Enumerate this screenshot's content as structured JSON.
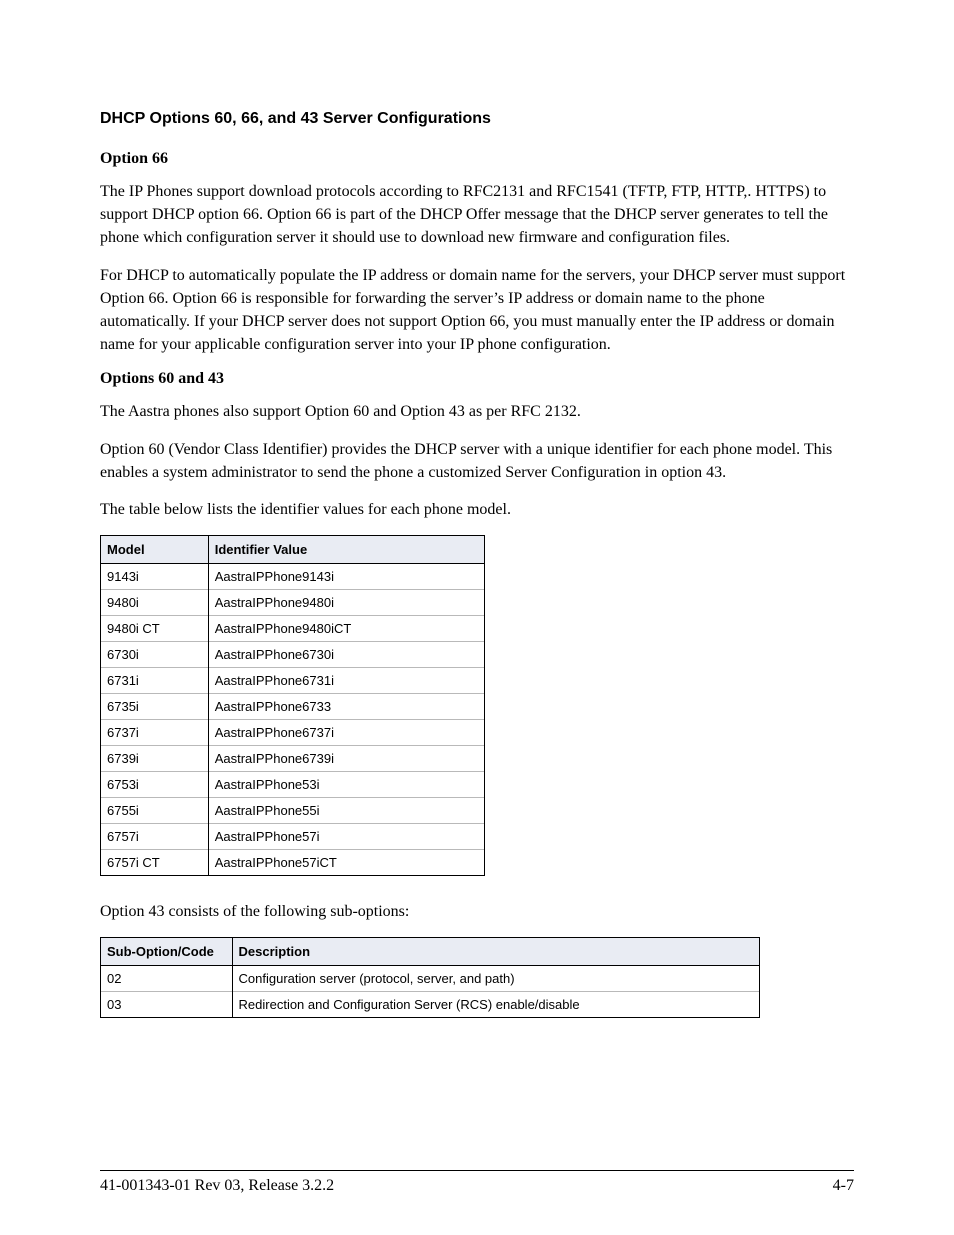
{
  "heading": "DHCP Options 60, 66, and 43 Server Configurations",
  "sub1": "Option 66",
  "p1": "The IP Phones support download protocols according to RFC2131 and RFC1541 (TFTP, FTP, HTTP,. HTTPS) to support DHCP option 66. Option 66 is part of the DHCP Offer message that the DHCP server generates to tell the phone which configuration server it should use to download new firmware and configuration files.",
  "p2": "For DHCP to automatically populate the IP address or domain name for the servers, your DHCP server must support Option 66. Option 66 is responsible for forwarding the server’s IP address or domain name to the phone automatically. If your DHCP server does not support Option 66, you must manually enter the IP address or domain name for your applicable configuration server into your IP phone configuration.",
  "sub2": "Options 60 and 43",
  "p3": "The Aastra phones also support Option 60 and Option 43 as per RFC 2132.",
  "p4": "Option 60 (Vendor Class Identifier) provides the DHCP server with a unique identifier for each phone model.  This enables a system administrator to send the phone a customized Server Configuration in option 43.",
  "p5": "The table below lists the identifier values for each phone model.",
  "models_table": {
    "columns": [
      "Model",
      "Identifier Value"
    ],
    "rows": [
      [
        "9143i",
        "AastraIPPhone9143i"
      ],
      [
        "9480i",
        "AastraIPPhone9480i"
      ],
      [
        "9480i CT",
        "AastraIPPhone9480iCT"
      ],
      [
        "6730i",
        "AastraIPPhone6730i"
      ],
      [
        "6731i",
        "AastraIPPhone6731i"
      ],
      [
        "6735i",
        "AastraIPPhone6733"
      ],
      [
        "6737i",
        "AastraIPPhone6737i"
      ],
      [
        "6739i",
        "AastraIPPhone6739i"
      ],
      [
        "6753i",
        "AastraIPPhone53i"
      ],
      [
        "6755i",
        "AastraIPPhone55i"
      ],
      [
        "6757i",
        "AastraIPPhone57i"
      ],
      [
        "6757i CT",
        "AastraIPPhone57iCT"
      ]
    ]
  },
  "p6": "Option 43 consists of the following sub-options:",
  "subopt_table": {
    "columns": [
      "Sub-Option/Code",
      "Description"
    ],
    "rows": [
      [
        "02",
        "Configuration server (protocol, server, and path)"
      ],
      [
        "03",
        "Redirection and Configuration Server (RCS) enable/disable"
      ]
    ]
  },
  "footer_left": "41-001343-01 Rev 03, Release 3.2.2",
  "footer_right": "4-7"
}
